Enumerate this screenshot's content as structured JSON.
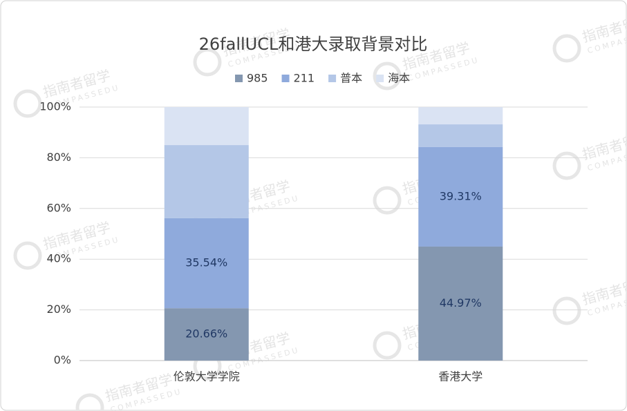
{
  "chart_data": {
    "type": "stacked_bar",
    "title": "26fallUCL和港大录取背景对比",
    "categories": [
      "伦敦大学学院",
      "香港大学"
    ],
    "series": [
      {
        "name": "985",
        "color": "#8497b0",
        "values": [
          20.66,
          44.97
        ],
        "value_labels": [
          "20.66%",
          "44.97%"
        ]
      },
      {
        "name": "211",
        "color": "#8faadc",
        "values": [
          35.54,
          39.31
        ],
        "value_labels": [
          "35.54%",
          "39.31%"
        ]
      },
      {
        "name": "普本",
        "color": "#b4c7e7",
        "values": [
          28.8,
          8.9
        ],
        "value_labels": [
          null,
          null
        ]
      },
      {
        "name": "海本",
        "color": "#dae3f3",
        "values": [
          15.0,
          6.8
        ],
        "value_labels": [
          null,
          null
        ]
      }
    ],
    "ylim": [
      0,
      100
    ],
    "yticks": [
      {
        "value": 0,
        "label": "0%"
      },
      {
        "value": 20,
        "label": "20%"
      },
      {
        "value": 40,
        "label": "40%"
      },
      {
        "value": 60,
        "label": "60%"
      },
      {
        "value": 80,
        "label": "80%"
      },
      {
        "value": 100,
        "label": "100%"
      }
    ],
    "grid": true,
    "legend": "top",
    "watermark": {
      "name": "指南者留学",
      "sub": "COMPASSEDU"
    }
  }
}
